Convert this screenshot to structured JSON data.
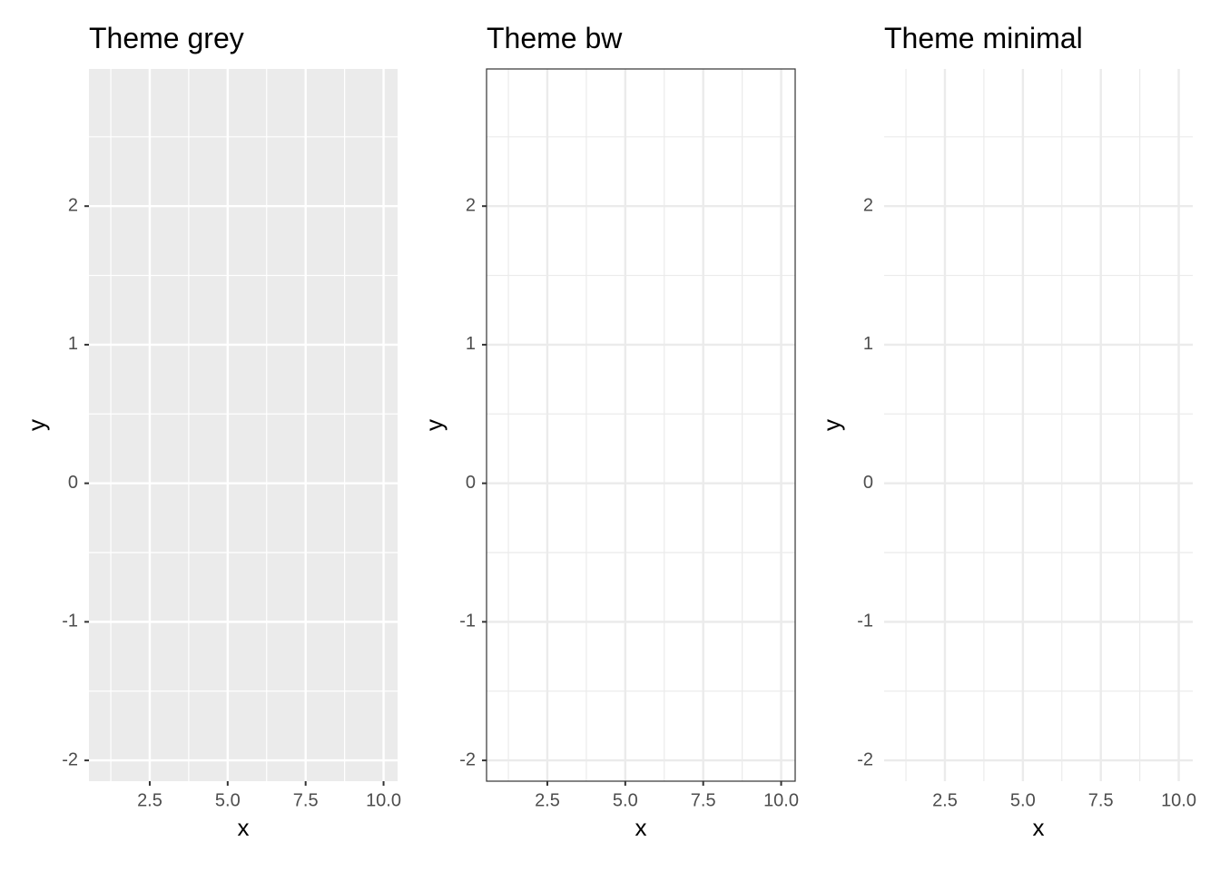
{
  "chart_data": [
    {
      "type": "blank",
      "title": "Theme grey",
      "x_label": "x",
      "y_label": "y",
      "xlim": [
        0.55,
        10.45
      ],
      "ylim": [
        -2.15,
        2.99
      ],
      "xticks": [
        2.5,
        {
          "value": 5,
          "label": "5.0"
        },
        7.5,
        {
          "value": 10,
          "label": "10.0"
        }
      ],
      "yticks": [
        -2,
        -1,
        0,
        1,
        2
      ],
      "xminor": [
        1.25,
        3.75,
        6.25,
        8.75
      ],
      "yminor": [
        -1.5,
        -0.5,
        0.5,
        1.5,
        2.5
      ],
      "background": "#ebebeb",
      "grid_color": "#ffffff",
      "border": false,
      "axis_ticks": true
    },
    {
      "type": "blank",
      "title": "Theme bw",
      "x_label": "x",
      "y_label": "y",
      "xlim": [
        0.55,
        10.45
      ],
      "ylim": [
        -2.15,
        2.99
      ],
      "xticks": [
        2.5,
        {
          "value": 5,
          "label": "5.0"
        },
        7.5,
        {
          "value": 10,
          "label": "10.0"
        }
      ],
      "yticks": [
        -2,
        -1,
        0,
        1,
        2
      ],
      "xminor": [
        1.25,
        3.75,
        6.25,
        8.75
      ],
      "yminor": [
        -1.5,
        -0.5,
        0.5,
        1.5,
        2.5
      ],
      "background": "#ffffff",
      "grid_color": "#ebebeb",
      "border": true,
      "axis_ticks": true
    },
    {
      "type": "blank",
      "title": "Theme minimal",
      "x_label": "x",
      "y_label": "y",
      "xlim": [
        0.55,
        10.45
      ],
      "ylim": [
        -2.15,
        2.99
      ],
      "xticks": [
        2.5,
        {
          "value": 5,
          "label": "5.0"
        },
        7.5,
        {
          "value": 10,
          "label": "10.0"
        }
      ],
      "yticks": [
        -2,
        -1,
        0,
        1,
        2
      ],
      "xminor": [
        1.25,
        3.75,
        6.25,
        8.75
      ],
      "yminor": [
        -1.5,
        -0.5,
        0.5,
        1.5,
        2.5
      ],
      "background": "#ffffff",
      "grid_color": "#ebebeb",
      "border": false,
      "axis_ticks": false
    }
  ]
}
